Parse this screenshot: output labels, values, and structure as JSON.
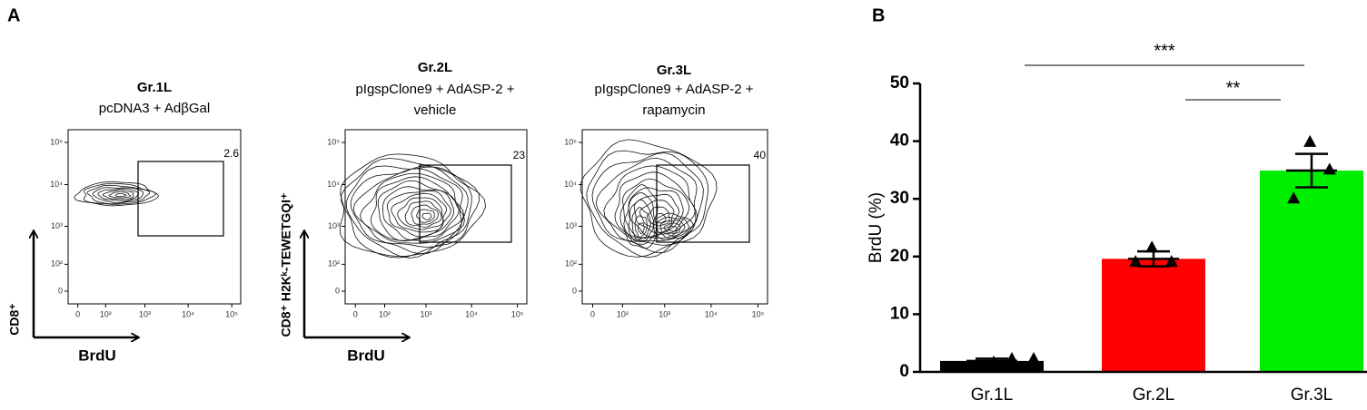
{
  "panels": [
    "A",
    "B"
  ],
  "flow_axes": [
    {
      "x_label": "BrdU",
      "y_label": "CD8⁺"
    },
    {
      "x_label": "BrdU",
      "y_label": "CD8⁺ H2Kᵏ-TEWETGQI⁺"
    }
  ],
  "chart_data": [
    {
      "type": "contour",
      "title": "Gr.1L",
      "subtitle": [
        "pcDNA3 + AdβGal"
      ],
      "gate_label": "2.6",
      "xlim": [
        -20,
        160000
      ],
      "ylim": [
        -30,
        200000
      ],
      "xticks": [
        0,
        {
          "value": 100,
          "label": "10²"
        },
        {
          "value": 1000,
          "label": "10³"
        },
        {
          "value": 10000,
          "label": "10⁴"
        },
        {
          "value": 100000,
          "label": "10⁵"
        }
      ],
      "yticks": [
        0,
        {
          "value": 100,
          "label": "10²"
        },
        {
          "value": 1000,
          "label": "10³"
        },
        {
          "value": 10000,
          "label": "10⁴"
        },
        {
          "value": 100000,
          "label": "10⁵"
        }
      ]
    },
    {
      "type": "contour",
      "title": "Gr.2L",
      "subtitle": [
        "pIgspClone9 + AdASP-2 +",
        "vehicle"
      ],
      "gate_label": "23",
      "xlim": [
        -20,
        160000
      ],
      "ylim": [
        -30,
        200000
      ],
      "xticks": [
        0,
        {
          "value": 100,
          "label": "10²"
        },
        {
          "value": 1000,
          "label": "10³"
        },
        {
          "value": 10000,
          "label": "10⁴"
        },
        {
          "value": 100000,
          "label": "10⁵"
        }
      ],
      "yticks": [
        0,
        {
          "value": 100,
          "label": "10²"
        },
        {
          "value": 1000,
          "label": "10³"
        },
        {
          "value": 10000,
          "label": "10⁴"
        },
        {
          "value": 100000,
          "label": "10⁵"
        }
      ]
    },
    {
      "type": "contour",
      "title": "Gr.3L",
      "subtitle": [
        "pIgspClone9 + AdASP-2 +",
        "rapamycin"
      ],
      "gate_label": "40",
      "xlim": [
        -20,
        160000
      ],
      "ylim": [
        -30,
        200000
      ],
      "xticks": [
        0,
        {
          "value": 100,
          "label": "10²"
        },
        {
          "value": 1000,
          "label": "10³"
        },
        {
          "value": 10000,
          "label": "10⁴"
        },
        {
          "value": 100000,
          "label": "10⁵"
        }
      ],
      "yticks": [
        0,
        {
          "value": 100,
          "label": "10²"
        },
        {
          "value": 1000,
          "label": "10³"
        },
        {
          "value": 10000,
          "label": "10⁴"
        },
        {
          "value": 100000,
          "label": "10⁵"
        }
      ]
    },
    {
      "type": "bar",
      "y_label": "BrdU (%)",
      "categories": [
        "Gr.1L",
        "Gr.2L",
        "Gr.3L"
      ],
      "values": [
        1.9,
        19.6,
        34.9
      ],
      "errors": [
        0.4,
        1.3,
        2.9
      ],
      "points": [
        [
          2.2,
          2.2,
          1.6
        ],
        [
          21.5,
          19.0,
          19.0
        ],
        [
          39.8,
          35.0,
          30.0
        ]
      ],
      "colors": [
        "#000000",
        "#ff0000",
        "#00ee00"
      ],
      "ylim": [
        0,
        50
      ],
      "yticks": [
        0,
        10,
        20,
        30,
        40,
        50
      ],
      "annotations": [
        "***",
        "**"
      ]
    }
  ]
}
